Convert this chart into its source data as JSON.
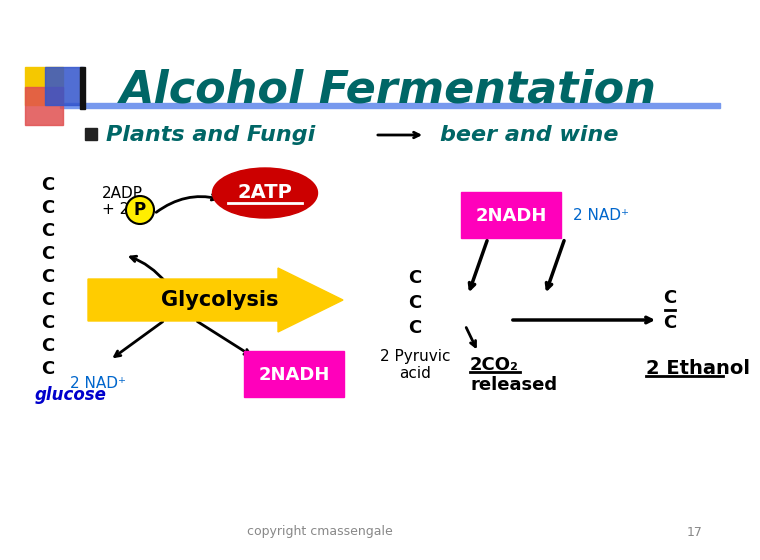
{
  "title": "Alcohol Fermentation",
  "title_color": "#006666",
  "title_fontsize": 32,
  "bg_color": "#ffffff",
  "bullet_text": "Plants and Fungi",
  "bullet_color": "#006666",
  "beer_text": "beer and wine",
  "beer_color": "#006666",
  "glucose_text": "glucose",
  "glucose_color": "#0000cc",
  "atp_text": "2ATP",
  "glycolysis_text": "Glycolysis",
  "nad_bottom_text": "2 NAD⁺",
  "nadh_bottom_text": "2NADH",
  "nadh_top_text": "2NADH",
  "nad_top_text": "2 NAD⁺",
  "pyruvic_text": "2 Pyruvic\nacid",
  "co2_line1": "2CO₂",
  "co2_line2": "released",
  "ethanol_text": "2 Ethanol",
  "p_text": "P",
  "nadh_box_color": "#ff00bb",
  "atp_ellipse_color": "#cc0000",
  "p_circle_color": "#ffee00",
  "copyright_text": "copyright cmassengale",
  "page_num": "17"
}
